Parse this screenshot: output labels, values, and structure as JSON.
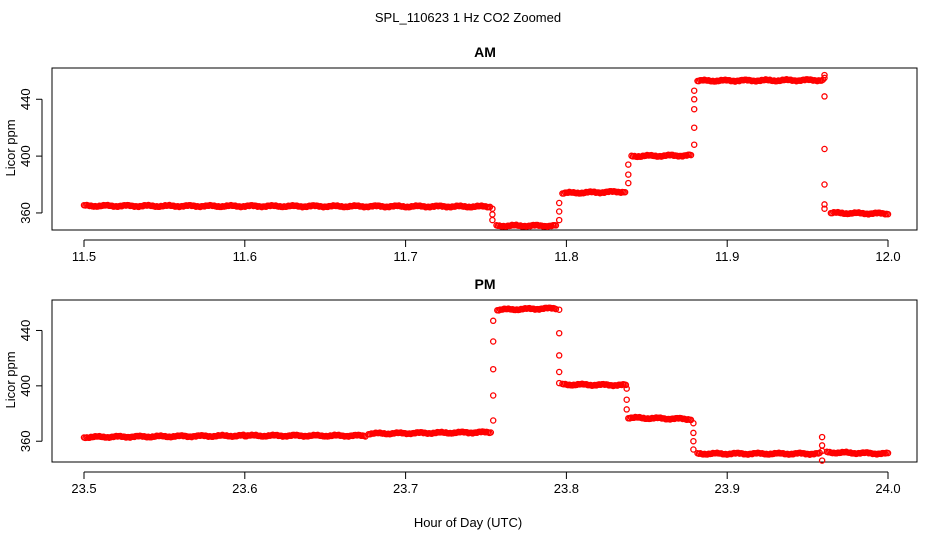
{
  "figure": {
    "title": "SPL_110623  1 Hz CO2 Zoomed",
    "xlabel": "Hour of Day (UTC)",
    "point_color": "#ff0000",
    "axis_color": "#000000"
  },
  "chart_data": [
    {
      "type": "scatter",
      "title": "AM",
      "xlabel": "",
      "ylabel": "Licor ppm",
      "xlim": [
        11.5,
        12.0
      ],
      "ylim": [
        348,
        462
      ],
      "xticks": [
        "11.5",
        "11.6",
        "11.7",
        "11.8",
        "11.9",
        "12.0"
      ],
      "yticks": [
        "360",
        "400",
        "440"
      ],
      "grid": false,
      "segments": [
        {
          "x0": 11.5,
          "x1": 11.7525,
          "y0": 365,
          "y1": 364.5
        },
        {
          "x0": 11.7565,
          "x1": 11.7935,
          "y0": 351,
          "y1": 351
        },
        {
          "x0": 11.7975,
          "x1": 11.8365,
          "y0": 374,
          "y1": 375
        },
        {
          "x0": 11.8405,
          "x1": 11.8775,
          "y0": 400,
          "y1": 400.5
        },
        {
          "x0": 11.8815,
          "x1": 11.9595,
          "y0": 453,
          "y1": 453.5
        },
        {
          "x0": 11.9645,
          "x1": 12.0,
          "y0": 360,
          "y1": 359.5
        }
      ],
      "transitions": [
        {
          "x": 11.754,
          "y": [
            363,
            359,
            355
          ]
        },
        {
          "x": 11.7955,
          "y": [
            355,
            361,
            367
          ]
        },
        {
          "x": 11.8385,
          "y": [
            381,
            387,
            394
          ]
        },
        {
          "x": 11.8795,
          "y": [
            408,
            420,
            433,
            440,
            446
          ]
        },
        {
          "x": 11.9605,
          "y": [
            455,
            457,
            442,
            405,
            380,
            366,
            363
          ]
        }
      ]
    },
    {
      "type": "scatter",
      "title": "PM",
      "xlabel": "",
      "ylabel": "Licor ppm",
      "xlim": [
        23.5,
        24.0
      ],
      "ylim": [
        345,
        462
      ],
      "xticks": [
        "23.5",
        "23.6",
        "23.7",
        "23.8",
        "23.9",
        "24.0"
      ],
      "yticks": [
        "360",
        "400",
        "440"
      ],
      "grid": false,
      "segments": [
        {
          "x0": 23.5,
          "x1": 23.6,
          "y0": 363,
          "y1": 364
        },
        {
          "x0": 23.6,
          "x1": 23.675,
          "y0": 364,
          "y1": 364
        },
        {
          "x0": 23.677,
          "x1": 23.753,
          "y0": 365.5,
          "y1": 366.5
        },
        {
          "x0": 23.757,
          "x1": 23.7935,
          "y0": 455,
          "y1": 456
        },
        {
          "x0": 23.7975,
          "x1": 23.837,
          "y0": 401,
          "y1": 400.5
        },
        {
          "x0": 23.8385,
          "x1": 23.8775,
          "y0": 377,
          "y1": 376
        },
        {
          "x0": 23.8815,
          "x1": 23.9575,
          "y0": 351,
          "y1": 351
        },
        {
          "x0": 23.962,
          "x1": 24.0,
          "y0": 352,
          "y1": 351
        }
      ],
      "transitions": [
        {
          "x": 23.7545,
          "y": [
            375,
            393,
            412,
            432,
            447
          ]
        },
        {
          "x": 23.7955,
          "y": [
            455,
            438,
            422,
            410,
            402
          ]
        },
        {
          "x": 23.8375,
          "y": [
            398,
            390,
            383
          ]
        },
        {
          "x": 23.879,
          "y": [
            373,
            366,
            360,
            354
          ]
        },
        {
          "x": 23.959,
          "y": [
            363,
            357,
            353,
            346
          ]
        }
      ]
    }
  ]
}
